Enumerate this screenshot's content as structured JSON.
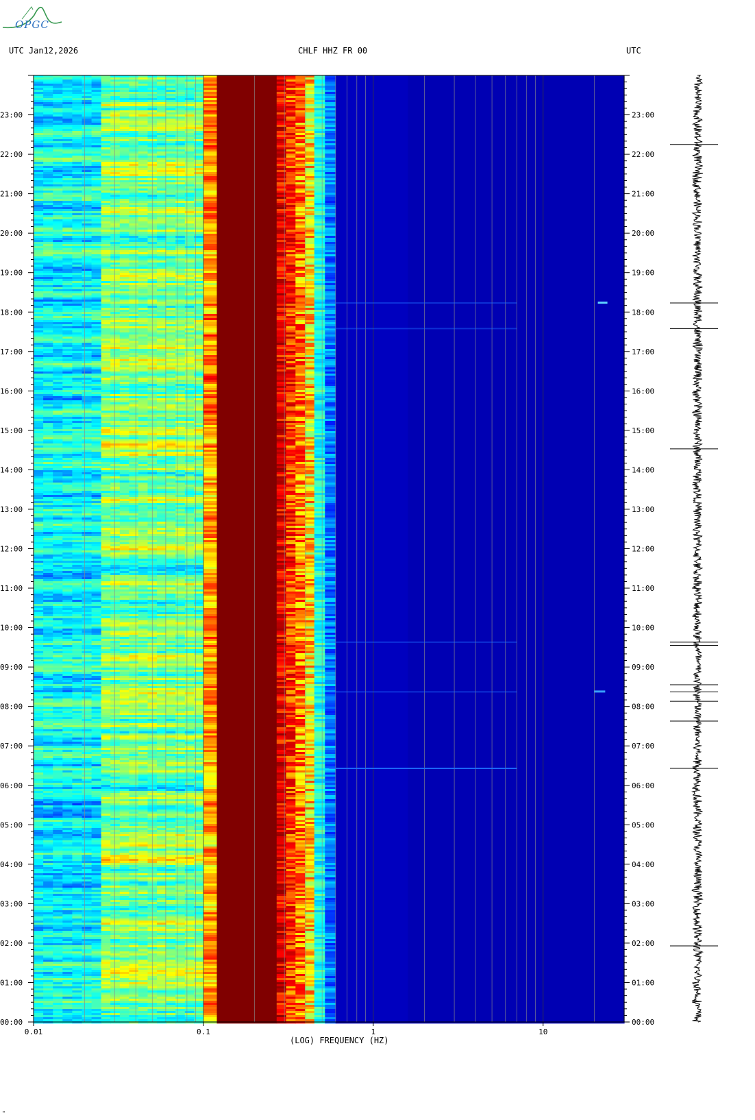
{
  "header": {
    "left_label": "UTC  Jan12,2026",
    "center_label": "CHLF HHZ FR 00",
    "right_label": "UTC"
  },
  "logo": {
    "text": "OPGC",
    "color": "#3a9a52"
  },
  "chart_data": {
    "type": "heatmap",
    "title": "CHLF HHZ FR 00",
    "date": "Jan12,2026",
    "xlabel": "(LOG) FREQUENCY (HZ)",
    "ylabel": "UTC",
    "x_scale": "log",
    "xlim": [
      0.01,
      30
    ],
    "x_ticks": [
      0.01,
      0.1,
      1,
      10
    ],
    "x_tick_labels": [
      "0.01",
      "0.1",
      "1",
      "10"
    ],
    "ylim_hours": [
      0,
      24
    ],
    "y_tick_labels": [
      "00:00",
      "01:00",
      "02:00",
      "03:00",
      "04:00",
      "05:00",
      "06:00",
      "07:00",
      "08:00",
      "09:00",
      "10:00",
      "11:00",
      "12:00",
      "13:00",
      "14:00",
      "15:00",
      "16:00",
      "17:00",
      "18:00",
      "19:00",
      "20:00",
      "21:00",
      "22:00",
      "23:00"
    ],
    "colormap": [
      "#000080",
      "#0000ff",
      "#00ffff",
      "#ffff00",
      "#ff0000",
      "#800000"
    ],
    "power_bands": [
      {
        "f_min": 0.01,
        "f_max": 0.025,
        "level": "cyan"
      },
      {
        "f_min": 0.025,
        "f_max": 0.1,
        "level": "cyan-yellow"
      },
      {
        "f_min": 0.1,
        "f_max": 0.12,
        "level": "yellow-red"
      },
      {
        "f_min": 0.12,
        "f_max": 0.27,
        "level": "dark-red"
      },
      {
        "f_min": 0.27,
        "f_max": 0.45,
        "level": "red-yellow"
      },
      {
        "f_min": 0.45,
        "f_max": 0.6,
        "level": "cyan-blue"
      },
      {
        "f_min": 0.6,
        "f_max": 30,
        "level": "dark-blue"
      }
    ],
    "events_hours": [
      6.43,
      8.37,
      9.63,
      17.58,
      18.23
    ],
    "seismogram_events_hours": [
      1.93,
      6.43,
      7.63,
      8.13,
      8.37,
      8.55,
      9.55,
      9.63,
      14.53,
      17.58,
      18.23,
      22.25
    ]
  },
  "footer_mark": "\""
}
